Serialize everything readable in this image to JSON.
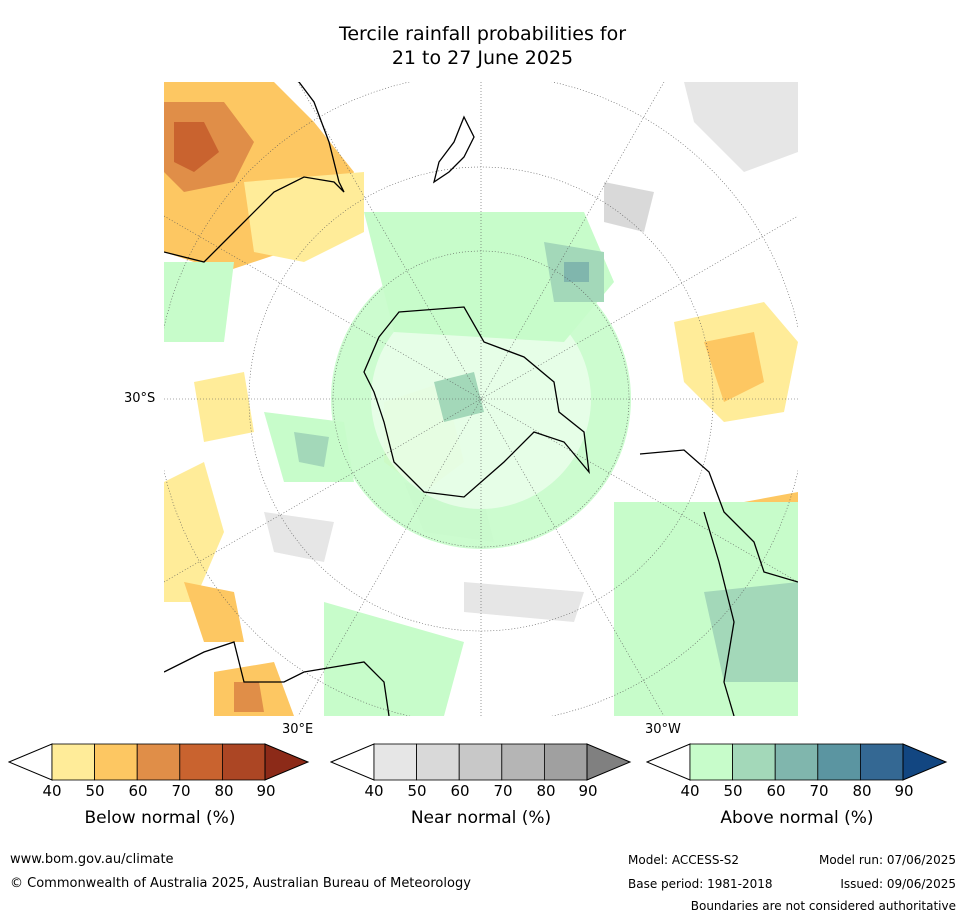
{
  "title_line1": "Tercile rainfall probabilities for",
  "title_line2": "21 to 27 June 2025",
  "axis_labels": {
    "lat": "30°S",
    "lon_east": "30°E",
    "lon_west": "30°W"
  },
  "legends": [
    {
      "title": "Below normal (%)",
      "ticks": [
        "40",
        "50",
        "60",
        "70",
        "80",
        "90"
      ],
      "colors": [
        "#ffffff",
        "#ffec99",
        "#fdc762",
        "#e08e48",
        "#c9632f",
        "#ac4624",
        "#8c2a18"
      ]
    },
    {
      "title": "Near normal (%)",
      "ticks": [
        "40",
        "50",
        "60",
        "70",
        "80",
        "90"
      ],
      "colors": [
        "#ffffff",
        "#e6e6e6",
        "#d9d9d9",
        "#c8c8c8",
        "#b5b5b5",
        "#a0a0a0",
        "#808080"
      ]
    },
    {
      "title": "Above normal (%)",
      "ticks": [
        "40",
        "50",
        "60",
        "70",
        "80",
        "90"
      ],
      "colors": [
        "#ffffff",
        "#c7fcca",
        "#a3d8b9",
        "#80b6ad",
        "#5b95a1",
        "#346893",
        "#124681"
      ]
    }
  ],
  "footer": {
    "url": "www.bom.gov.au/climate",
    "copyright": "© Commonwealth of Australia 2025, Australian Bureau of Meteorology",
    "model": "Model: ACCESS-S2",
    "base_period": "Base period: 1981-2018",
    "model_run": "Model run: 07/06/2025",
    "issued": "Issued: 09/06/2025",
    "disclaimer": "Boundaries are not considered authoritative"
  }
}
